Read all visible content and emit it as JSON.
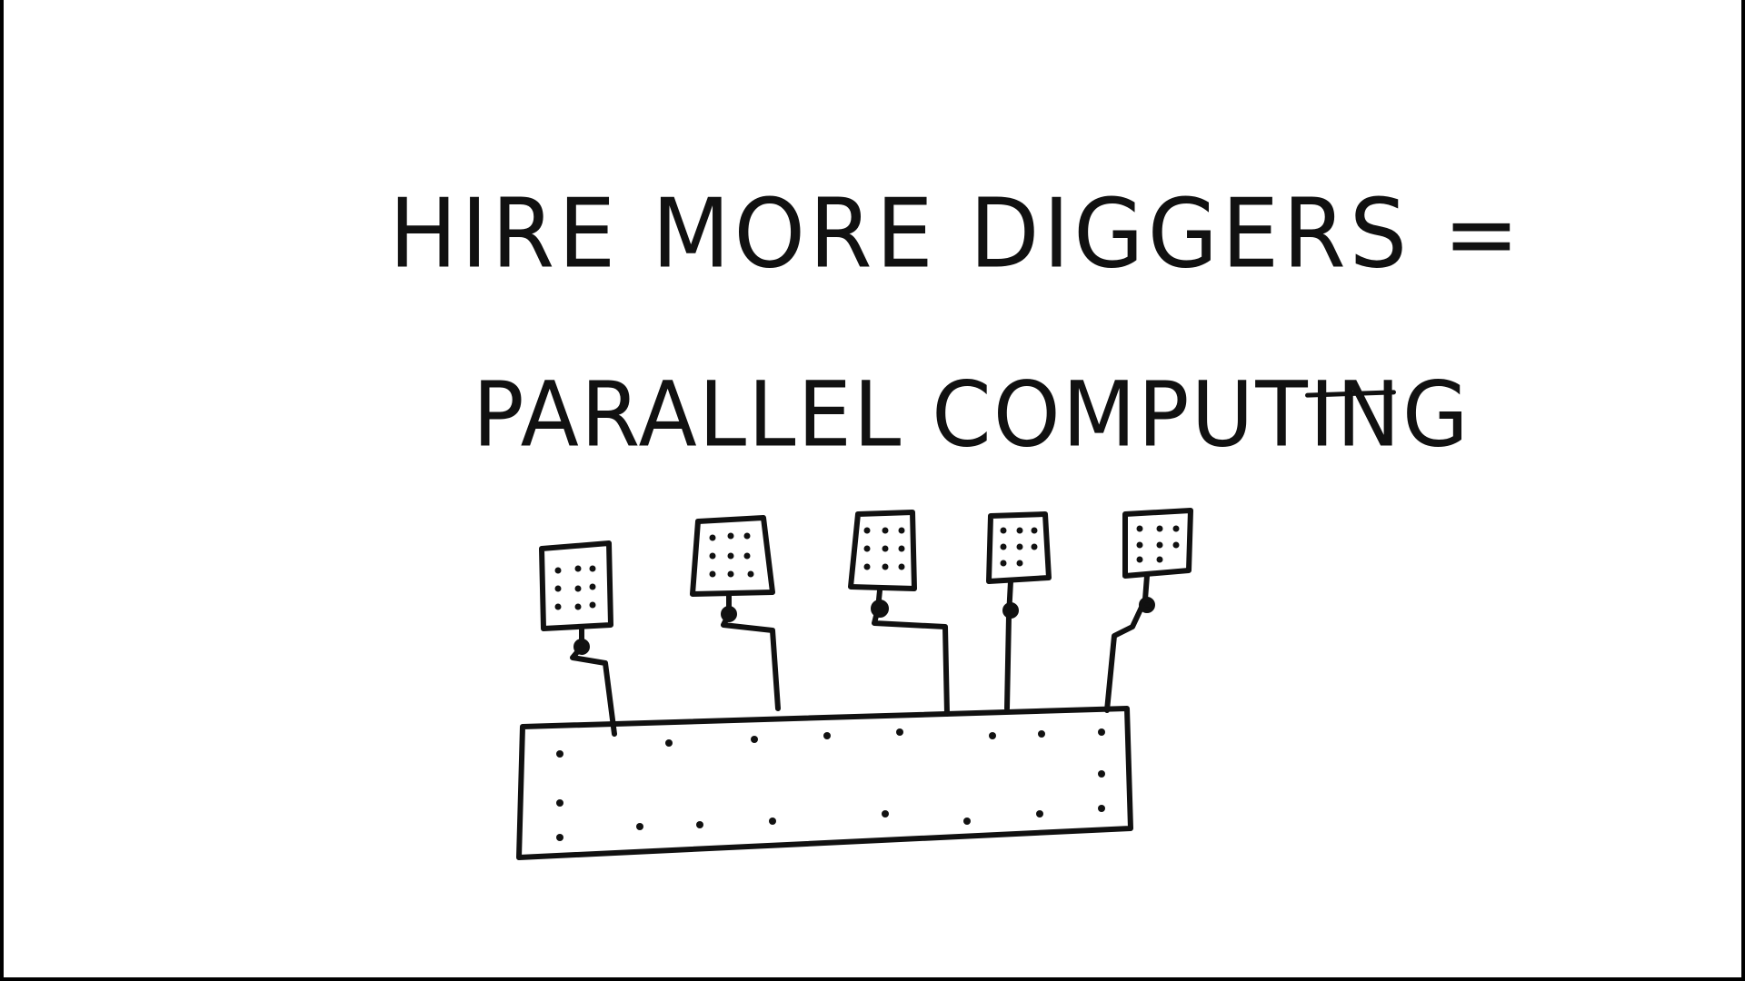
{
  "title": {
    "line1": "HIRE MORE DIGGERS =",
    "line2": "PARALLEL COMPUTING"
  },
  "colors": {
    "ink": "#111111",
    "paper": "#ffffff",
    "border": "#000000"
  },
  "diagram": {
    "worker_count": 5,
    "elements": [
      "worker-card",
      "connector-wire",
      "main-board"
    ]
  }
}
